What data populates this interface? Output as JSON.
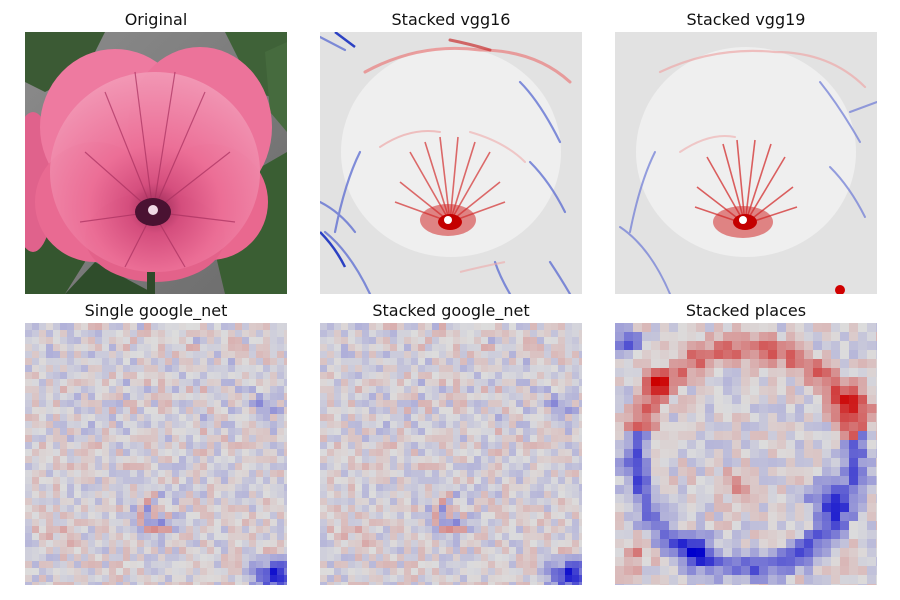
{
  "panels": [
    {
      "title": "Original",
      "kind": "photo"
    },
    {
      "title": "Stacked vgg16",
      "kind": "smooth-heatmap"
    },
    {
      "title": "Stacked vgg19",
      "kind": "smooth-heatmap"
    },
    {
      "title": "Single google_net",
      "kind": "blocky-heatmap"
    },
    {
      "title": "Stacked google_net",
      "kind": "blocky-heatmap"
    },
    {
      "title": "Stacked places",
      "kind": "coarse-heatmap"
    }
  ],
  "colors": {
    "background": "#ffffff",
    "heatmap_neutral": "#dcdcdc",
    "heatmap_positive": "#cc0000",
    "heatmap_negative": "#0000cc",
    "flower_petal": "#ec6f97",
    "flower_center": "#4a1232",
    "leaf": "#3d5f35",
    "background_gray": "#7f7f7f"
  }
}
